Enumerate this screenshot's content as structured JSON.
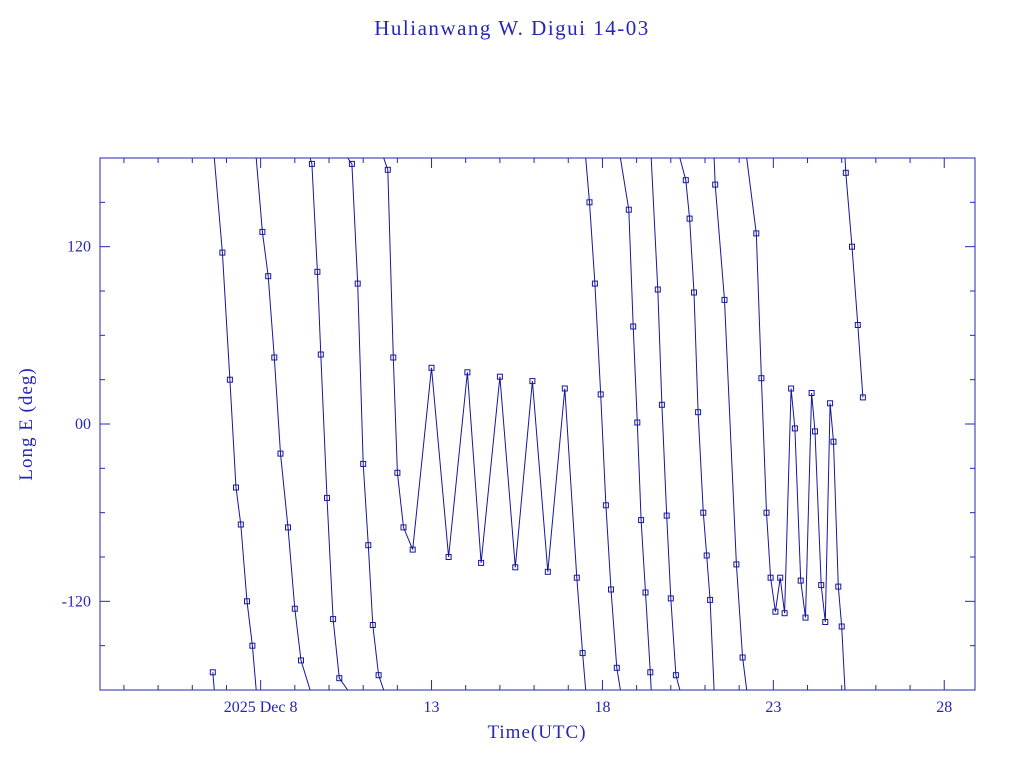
{
  "colors": {
    "accent": "#2626b6",
    "line": "#16169e",
    "frame": "#2626b6",
    "background": "#ffffff"
  },
  "chart_data": {
    "type": "line",
    "title": "Hulianwang W. Digui 14-03",
    "xlabel": "Time(UTC)",
    "ylabel": "Long E (deg)",
    "x_unit": "day of December 2025",
    "xlim": [
      3.3,
      28.9
    ],
    "ylim": [
      -180,
      180
    ],
    "grid": false,
    "legend": null,
    "marker": "open-square",
    "wrap_longitude": true,
    "x_major_ticks": [
      {
        "value": 8,
        "label": "2025 Dec  8"
      },
      {
        "value": 13,
        "label": "13"
      },
      {
        "value": 18,
        "label": "18"
      },
      {
        "value": 23,
        "label": "23"
      },
      {
        "value": 28,
        "label": "28"
      }
    ],
    "x_minor_step": 1,
    "y_major_ticks": [
      {
        "value": -120,
        "label": "-120"
      },
      {
        "value": 0,
        "label": "00"
      },
      {
        "value": 120,
        "label": "120"
      }
    ],
    "y_minor_step": 30,
    "series": [
      {
        "name": "Long E",
        "points": [
          [
            6.6,
            -168
          ],
          [
            6.88,
            116
          ],
          [
            7.1,
            30
          ],
          [
            7.28,
            -43
          ],
          [
            7.42,
            -68
          ],
          [
            7.6,
            -120
          ],
          [
            7.76,
            -150
          ],
          [
            8.05,
            130
          ],
          [
            8.22,
            100
          ],
          [
            8.4,
            45
          ],
          [
            8.58,
            -20
          ],
          [
            8.8,
            -70
          ],
          [
            9.0,
            -125
          ],
          [
            9.18,
            -160
          ],
          [
            9.5,
            176
          ],
          [
            9.66,
            103
          ],
          [
            9.76,
            47
          ],
          [
            9.94,
            -50
          ],
          [
            10.12,
            -132
          ],
          [
            10.3,
            -172
          ],
          [
            10.67,
            176
          ],
          [
            10.84,
            95
          ],
          [
            11.0,
            -27
          ],
          [
            11.15,
            -82
          ],
          [
            11.28,
            -136
          ],
          [
            11.45,
            -170
          ],
          [
            11.72,
            172
          ],
          [
            11.88,
            45
          ],
          [
            12.0,
            -33
          ],
          [
            12.18,
            -70
          ],
          [
            12.45,
            -85
          ],
          [
            13.0,
            38
          ],
          [
            13.5,
            -90
          ],
          [
            14.05,
            35
          ],
          [
            14.45,
            -94
          ],
          [
            15.0,
            32
          ],
          [
            15.45,
            -97
          ],
          [
            15.95,
            29
          ],
          [
            16.4,
            -100
          ],
          [
            16.9,
            24
          ],
          [
            17.25,
            -104
          ],
          [
            17.42,
            -155
          ],
          [
            17.62,
            150
          ],
          [
            17.78,
            95
          ],
          [
            17.95,
            20
          ],
          [
            18.1,
            -55
          ],
          [
            18.25,
            -112
          ],
          [
            18.42,
            -165
          ],
          [
            18.77,
            145
          ],
          [
            18.9,
            66
          ],
          [
            19.02,
            1
          ],
          [
            19.13,
            -65
          ],
          [
            19.26,
            -114
          ],
          [
            19.4,
            -168
          ],
          [
            19.62,
            91
          ],
          [
            19.74,
            13
          ],
          [
            19.88,
            -62
          ],
          [
            20.0,
            -118
          ],
          [
            20.15,
            -170
          ],
          [
            20.44,
            165
          ],
          [
            20.55,
            139
          ],
          [
            20.68,
            89
          ],
          [
            20.8,
            8
          ],
          [
            20.95,
            -60
          ],
          [
            21.05,
            -89
          ],
          [
            21.15,
            -119
          ],
          [
            21.3,
            162
          ],
          [
            21.57,
            84
          ],
          [
            21.92,
            -95
          ],
          [
            22.1,
            -158
          ],
          [
            22.5,
            129
          ],
          [
            22.65,
            31
          ],
          [
            22.8,
            -60
          ],
          [
            22.92,
            -104
          ],
          [
            23.06,
            -127
          ],
          [
            23.2,
            -104
          ],
          [
            23.33,
            -128
          ],
          [
            23.52,
            24
          ],
          [
            23.63,
            -3
          ],
          [
            23.8,
            -106
          ],
          [
            23.94,
            -131
          ],
          [
            24.12,
            21
          ],
          [
            24.22,
            -5
          ],
          [
            24.4,
            -109
          ],
          [
            24.52,
            -134
          ],
          [
            24.66,
            14
          ],
          [
            24.76,
            -12
          ],
          [
            24.9,
            -110
          ],
          [
            25.0,
            -137
          ],
          [
            25.12,
            170
          ],
          [
            25.3,
            120
          ],
          [
            25.47,
            67
          ],
          [
            25.62,
            18
          ]
        ]
      }
    ]
  }
}
